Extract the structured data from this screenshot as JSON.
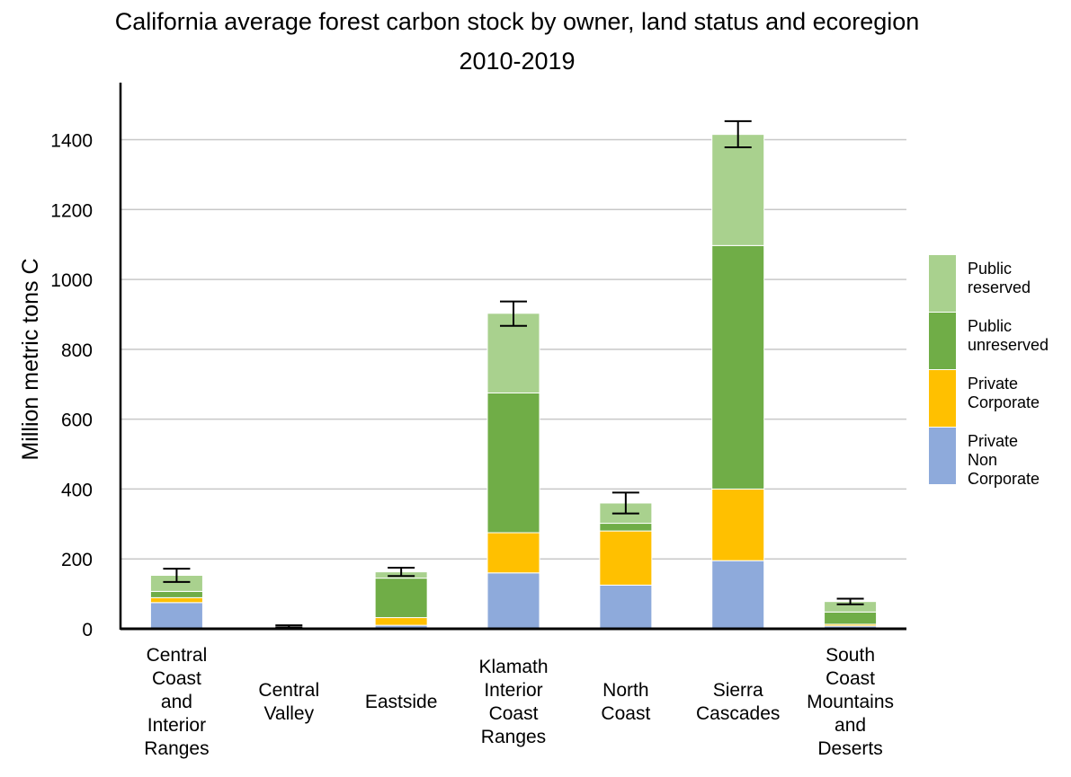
{
  "chart_data": {
    "type": "bar",
    "stacked": true,
    "title": "California average forest carbon stock by owner, land status and ecoregion",
    "subtitle": "2010-2019",
    "xlabel": "",
    "ylabel": "Million metric tons C",
    "ylim": [
      0,
      1550
    ],
    "yticks": [
      0,
      200,
      400,
      600,
      800,
      1000,
      1200,
      1400
    ],
    "grid": true,
    "legend_position": "right",
    "categories": [
      [
        "Central",
        "Coast",
        "and",
        "Interior",
        "Ranges"
      ],
      [
        "Central",
        "Valley"
      ],
      [
        "Eastside"
      ],
      [
        "Klamath",
        "Interior",
        "Coast",
        "Ranges"
      ],
      [
        "North",
        "Coast"
      ],
      [
        "Sierra",
        "Cascades"
      ],
      [
        "South",
        "Coast",
        "Mountains",
        "and",
        "Deserts"
      ]
    ],
    "series": [
      {
        "name": "Private Non Corporate",
        "color": "#8eaadb",
        "values": [
          75,
          3,
          10,
          160,
          125,
          195,
          8
        ]
      },
      {
        "name": "Private Corporate",
        "color": "#ffc000",
        "values": [
          14,
          0,
          22,
          115,
          155,
          205,
          5
        ]
      },
      {
        "name": "Public unreserved",
        "color": "#70ad47",
        "values": [
          18,
          0,
          113,
          400,
          22,
          697,
          35
        ]
      },
      {
        "name": "Public reserved",
        "color": "#a9d18e",
        "values": [
          46,
          0,
          18,
          228,
          58,
          318,
          30
        ]
      }
    ],
    "error_bars": [
      {
        "low": 134,
        "high": 172
      },
      {
        "low": 4,
        "high": 10
      },
      {
        "low": 151,
        "high": 175
      },
      {
        "low": 867,
        "high": 937
      },
      {
        "low": 330,
        "high": 390
      },
      {
        "low": 1378,
        "high": 1453
      },
      {
        "low": 70,
        "high": 86
      }
    ],
    "legend": [
      {
        "lines": [
          "Public",
          "reserved"
        ],
        "color": "#a9d18e"
      },
      {
        "lines": [
          "Public",
          "unreserved"
        ],
        "color": "#70ad47"
      },
      {
        "lines": [
          "Private",
          "Corporate"
        ],
        "color": "#ffc000"
      },
      {
        "lines": [
          "Private",
          "Non",
          "Corporate"
        ],
        "color": "#8eaadb"
      }
    ]
  }
}
